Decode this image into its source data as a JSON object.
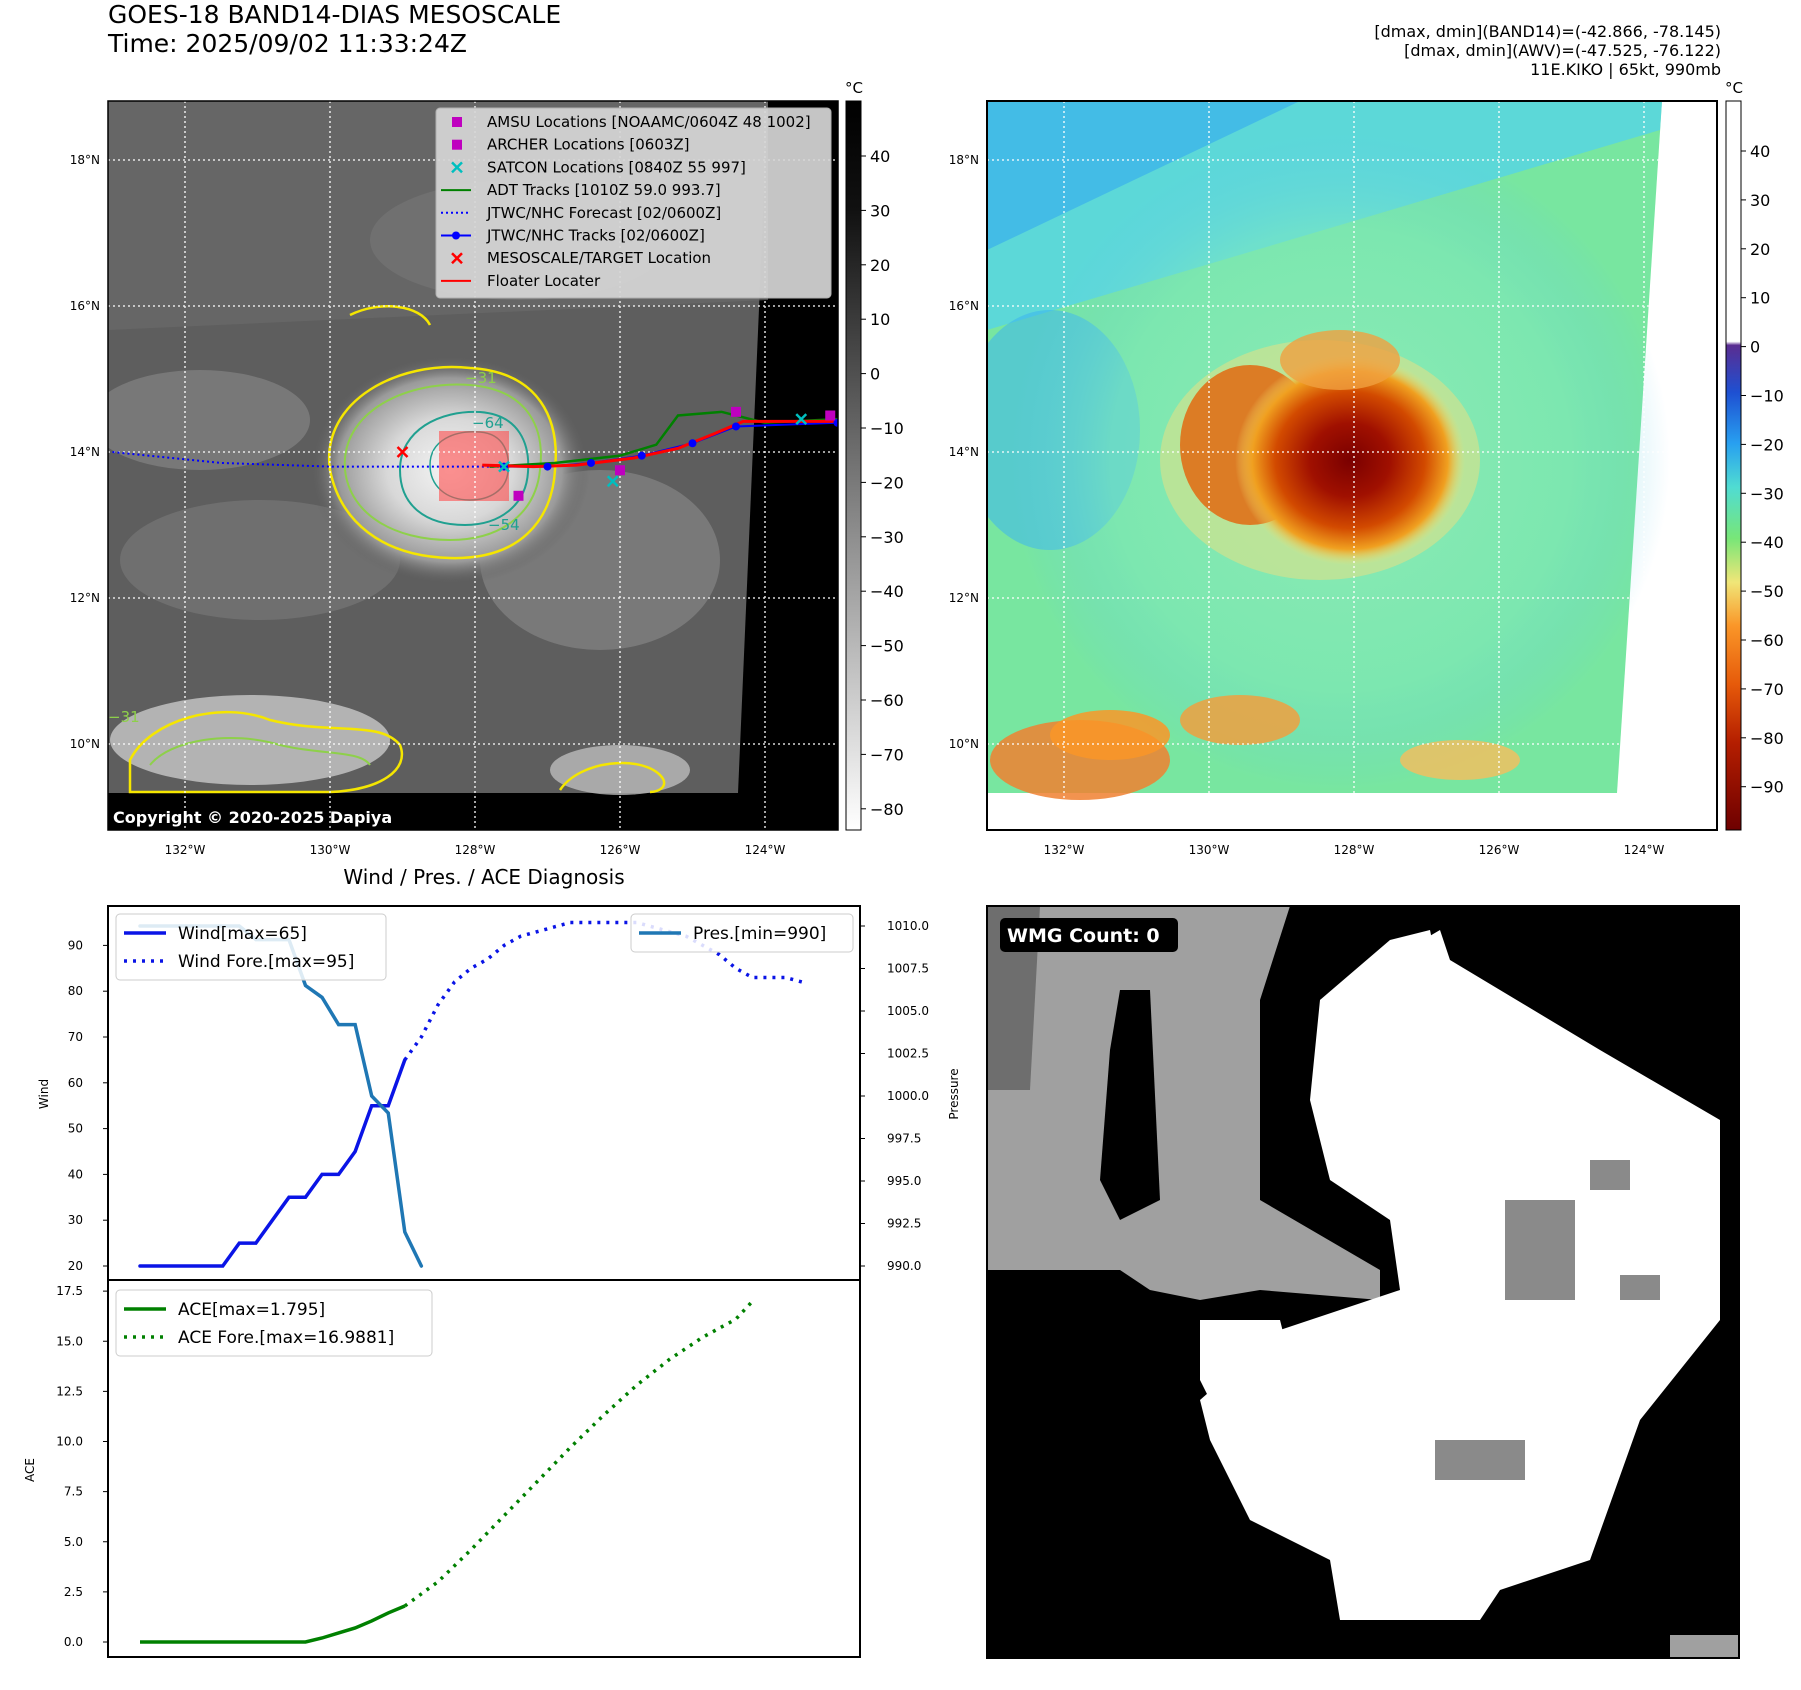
{
  "header": {
    "title_line1": "GOES-18 BAND14-DIAS MESOSCALE",
    "title_line2": "Time: 2025/09/02 11:33:24Z",
    "right_line1": "[dmax, dmin](BAND14)=(-42.866, -78.145)",
    "right_line2": "[dmax, dmin](AWV)=(-47.525, -76.122)",
    "right_line3": "11E.KIKO | 65kt, 990mb"
  },
  "colors": {
    "wind": "#0a14e6",
    "pressure": "#1f77b4",
    "ace": "#008000",
    "jtwc_forecast": "#0000ff",
    "adt": "#008000",
    "satcon": "#00bfbf",
    "amsu": "#bf00bf",
    "target": "#ff0000"
  },
  "map_axes": {
    "lon_ticks": [
      "132°W",
      "130°W",
      "128°W",
      "126°W",
      "124°W"
    ],
    "lat_ticks": [
      "18°N",
      "16°N",
      "14°N",
      "12°N",
      "10°N"
    ]
  },
  "ir_panel": {
    "colorbar_unit": "°C",
    "colorbar_ticks": [
      "40",
      "30",
      "20",
      "10",
      "0",
      "−10",
      "−20",
      "−30",
      "−40",
      "−50",
      "−60",
      "−70",
      "−80"
    ],
    "contour_labels": [
      "−64",
      "−54",
      "−31",
      "−31"
    ],
    "copyright": "Copyright © 2020-2025 Dapiya",
    "legend": [
      {
        "label": "AMSU Locations [NOAAMC/0604Z 48 1002]",
        "marker": "square",
        "color": "#bf00bf"
      },
      {
        "label": "ARCHER Locations [0603Z]",
        "marker": "square",
        "color": "#bf00bf"
      },
      {
        "label": "SATCON Locations [0840Z 55 997]",
        "marker": "x",
        "color": "#00bfbf"
      },
      {
        "label": "ADT Tracks [1010Z 59.0 993.7]",
        "marker": "line",
        "color": "#008000"
      },
      {
        "label": "JTWC/NHC Forecast [02/0600Z]",
        "marker": "dotted",
        "color": "#0000ff"
      },
      {
        "label": "JTWC/NHC Tracks [02/0600Z]",
        "marker": "line-dot",
        "color": "#0000ff"
      },
      {
        "label": "MESOSCALE/TARGET Location",
        "marker": "x",
        "color": "#ff0000"
      },
      {
        "label": "Floater Locater",
        "marker": "line",
        "color": "#ff0000"
      }
    ],
    "target_location": {
      "lon": -129.0,
      "lat": 14.0
    },
    "jtwc_forecast_track": [
      {
        "lon": -133.0,
        "lat": 14.0
      },
      {
        "lon": -131.5,
        "lat": 13.85
      },
      {
        "lon": -130.0,
        "lat": 13.8
      },
      {
        "lon": -128.5,
        "lat": 13.8
      },
      {
        "lon": -127.6,
        "lat": 13.8
      }
    ],
    "jtwc_track": [
      {
        "lon": -127.6,
        "lat": 13.8
      },
      {
        "lon": -127.0,
        "lat": 13.8
      },
      {
        "lon": -126.4,
        "lat": 13.85
      },
      {
        "lon": -125.7,
        "lat": 13.95
      },
      {
        "lon": -125.0,
        "lat": 14.12
      },
      {
        "lon": -124.4,
        "lat": 14.35
      },
      {
        "lon": -123.0,
        "lat": 14.4
      }
    ],
    "adt_track": [
      {
        "lon": -127.8,
        "lat": 13.8
      },
      {
        "lon": -126.9,
        "lat": 13.85
      },
      {
        "lon": -126.0,
        "lat": 13.95
      },
      {
        "lon": -125.5,
        "lat": 14.1
      },
      {
        "lon": -125.2,
        "lat": 14.5
      },
      {
        "lon": -124.6,
        "lat": 14.55
      },
      {
        "lon": -124.0,
        "lat": 14.4
      },
      {
        "lon": -123.0,
        "lat": 14.45
      }
    ],
    "floater_track": [
      {
        "lon": -127.9,
        "lat": 13.82
      },
      {
        "lon": -127.2,
        "lat": 13.8
      },
      {
        "lon": -126.6,
        "lat": 13.82
      },
      {
        "lon": -125.8,
        "lat": 13.92
      },
      {
        "lon": -125.2,
        "lat": 14.05
      },
      {
        "lon": -124.7,
        "lat": 14.25
      },
      {
        "lon": -124.3,
        "lat": 14.42
      },
      {
        "lon": -123.0,
        "lat": 14.42
      }
    ],
    "amsu_points": [
      {
        "lon": -127.4,
        "lat": 13.4
      },
      {
        "lon": -126.0,
        "lat": 13.75
      },
      {
        "lon": -124.4,
        "lat": 14.55
      },
      {
        "lon": -123.1,
        "lat": 14.5
      }
    ],
    "satcon_points": [
      {
        "lon": -127.6,
        "lat": 13.8
      },
      {
        "lon": -126.1,
        "lat": 13.6
      },
      {
        "lon": -123.5,
        "lat": 14.45
      }
    ]
  },
  "awv_panel": {
    "colorbar_unit": "°C",
    "colorbar_ticks": [
      "40",
      "30",
      "20",
      "10",
      "0",
      "−10",
      "−20",
      "−30",
      "−40",
      "−50",
      "−60",
      "−70",
      "−80",
      "−90"
    ]
  },
  "chart_data": [
    {
      "type": "line",
      "title": "Wind / Pres. / ACE Diagnosis",
      "ylabel": "Wind",
      "ylim": [
        18,
        98
      ],
      "yticks": [
        20,
        30,
        40,
        50,
        60,
        70,
        80,
        90
      ],
      "y2label": "Pressure",
      "y2lim": [
        989.5,
        1010.5
      ],
      "y2ticks": [
        "990.0",
        "992.5",
        "995.0",
        "997.5",
        "1000.0",
        "1002.5",
        "1005.0",
        "1007.5",
        "1010.0"
      ],
      "x": [
        0,
        1,
        2,
        3,
        4,
        5,
        6,
        7,
        8,
        9,
        10,
        11,
        12,
        13,
        14,
        15,
        16,
        17,
        18,
        19,
        20,
        21,
        22,
        23
      ],
      "series": [
        {
          "name": "Wind",
          "label": "Wind[max=65]",
          "style": "solid",
          "axis": "left",
          "points": [
            [
              0,
              20
            ],
            [
              1,
              20
            ],
            [
              2,
              20
            ],
            [
              3,
              20
            ],
            [
              4,
              20
            ],
            [
              5,
              20
            ],
            [
              6,
              25
            ],
            [
              7,
              25
            ],
            [
              8,
              30
            ],
            [
              9,
              35
            ],
            [
              10,
              35
            ],
            [
              11,
              40
            ],
            [
              12,
              40
            ],
            [
              13,
              45
            ],
            [
              14,
              55
            ],
            [
              15,
              55
            ],
            [
              16,
              65
            ]
          ]
        },
        {
          "name": "Wind Fore.",
          "label": "Wind Fore.[max=95]",
          "style": "dotted",
          "axis": "left",
          "points": [
            [
              16,
              65
            ],
            [
              17,
              70
            ],
            [
              18,
              77
            ],
            [
              19,
              82
            ],
            [
              20,
              85
            ],
            [
              21,
              87
            ],
            [
              22,
              90
            ],
            [
              23,
              92
            ],
            [
              24,
              93
            ],
            [
              25,
              94
            ],
            [
              26,
              95
            ],
            [
              27,
              95
            ],
            [
              28,
              95
            ],
            [
              29,
              95
            ],
            [
              30,
              95
            ],
            [
              31,
              94
            ],
            [
              32,
              93
            ],
            [
              33,
              92
            ],
            [
              34,
              90
            ],
            [
              35,
              88
            ],
            [
              36,
              85
            ],
            [
              37,
              83
            ],
            [
              38,
              83
            ],
            [
              39,
              83
            ],
            [
              40,
              82
            ]
          ]
        },
        {
          "name": "Pres.",
          "label": "Pres.[min=990]",
          "style": "solid",
          "axis": "right",
          "points": [
            [
              0,
              1010
            ],
            [
              1,
              1010
            ],
            [
              2,
              1010
            ],
            [
              3,
              1010
            ],
            [
              4,
              1010
            ],
            [
              5,
              1010
            ],
            [
              6,
              1010
            ],
            [
              7,
              1009.2
            ],
            [
              8,
              1009.2
            ],
            [
              9,
              1009.2
            ],
            [
              10,
              1006.5
            ],
            [
              11,
              1005.8
            ],
            [
              12,
              1004.2
            ],
            [
              13,
              1004.2
            ],
            [
              14,
              1000
            ],
            [
              15,
              999
            ],
            [
              16,
              992
            ],
            [
              17,
              990
            ]
          ]
        }
      ]
    },
    {
      "type": "line",
      "ylabel": "ACE",
      "ylim": [
        -0.8,
        17.5
      ],
      "yticks": [
        "0.0",
        "2.5",
        "5.0",
        "7.5",
        "10.0",
        "12.5",
        "15.0",
        "17.5"
      ],
      "series": [
        {
          "name": "ACE",
          "label": "ACE[max=1.795]",
          "style": "solid",
          "points": [
            [
              0,
              0
            ],
            [
              2,
              0
            ],
            [
              4,
              0
            ],
            [
              6,
              0
            ],
            [
              8,
              0
            ],
            [
              10,
              0
            ],
            [
              11,
              0.2
            ],
            [
              12,
              0.45
            ],
            [
              13,
              0.7
            ],
            [
              14,
              1.05
            ],
            [
              15,
              1.45
            ],
            [
              16,
              1.795
            ]
          ]
        },
        {
          "name": "ACE Fore.",
          "label": "ACE Fore.[max=16.9881]",
          "style": "dotted",
          "points": [
            [
              16,
              1.795
            ],
            [
              18,
              3.0
            ],
            [
              20,
              4.6
            ],
            [
              22,
              6.3
            ],
            [
              24,
              8.0
            ],
            [
              26,
              9.7
            ],
            [
              28,
              11.3
            ],
            [
              30,
              12.8
            ],
            [
              32,
              14.1
            ],
            [
              34,
              15.2
            ],
            [
              36,
              16.1
            ],
            [
              37,
              16.9881
            ]
          ]
        }
      ]
    }
  ],
  "wmg_panel": {
    "label": "WMG Count: 0"
  }
}
